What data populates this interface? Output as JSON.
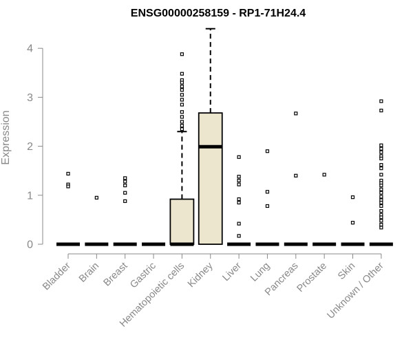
{
  "chart_data": {
    "type": "box",
    "title": "ENSG00000258159 - RP1-71H24.4",
    "xlabel": "",
    "ylabel": "Expression",
    "ylim": [
      0,
      4.4
    ],
    "yticks": [
      0,
      1,
      2,
      3,
      4
    ],
    "categories": [
      "Bladder",
      "Brain",
      "Breast",
      "Gastric",
      "Hematopoietic cells",
      "Kidney",
      "Liver",
      "Lung",
      "Pancreas",
      "Prostate",
      "Skin",
      "Unknown / Other"
    ],
    "box_fill": "#ede6cf",
    "boxes": [
      {
        "category": "Bladder",
        "q1": 0,
        "median": 0,
        "q3": 0,
        "whisker_low": 0,
        "whisker_high": 0,
        "outliers": [
          1.44,
          1.22,
          1.18
        ]
      },
      {
        "category": "Brain",
        "q1": 0,
        "median": 0,
        "q3": 0,
        "whisker_low": 0,
        "whisker_high": 0,
        "outliers": [
          0.95
        ]
      },
      {
        "category": "Breast",
        "q1": 0,
        "median": 0,
        "q3": 0,
        "whisker_low": 0,
        "whisker_high": 0,
        "outliers": [
          1.35,
          1.28,
          1.2,
          1.05,
          0.88
        ]
      },
      {
        "category": "Gastric",
        "q1": 0,
        "median": 0,
        "q3": 0,
        "whisker_low": 0,
        "whisker_high": 0,
        "outliers": []
      },
      {
        "category": "Hematopoietic cells",
        "q1": 0,
        "median": 0,
        "q3": 0.92,
        "whisker_low": 0,
        "whisker_high": 2.3,
        "outliers": [
          3.88,
          3.48,
          3.35,
          3.3,
          3.22,
          3.15,
          3.05,
          2.95,
          2.85,
          2.7,
          2.6,
          2.5,
          2.42,
          2.35
        ]
      },
      {
        "category": "Kidney",
        "q1": 0,
        "median": 1.99,
        "q3": 2.68,
        "whisker_low": 0,
        "whisker_high": 4.4,
        "outliers": []
      },
      {
        "category": "Liver",
        "q1": 0,
        "median": 0,
        "q3": 0,
        "whisker_low": 0,
        "whisker_high": 0,
        "outliers": [
          1.78,
          1.38,
          1.3,
          1.22,
          0.92,
          0.85,
          0.42,
          0.17
        ]
      },
      {
        "category": "Lung",
        "q1": 0,
        "median": 0,
        "q3": 0,
        "whisker_low": 0,
        "whisker_high": 0,
        "outliers": [
          1.9,
          1.07,
          0.78
        ]
      },
      {
        "category": "Pancreas",
        "q1": 0,
        "median": 0,
        "q3": 0,
        "whisker_low": 0,
        "whisker_high": 0,
        "outliers": [
          2.67,
          1.4
        ]
      },
      {
        "category": "Prostate",
        "q1": 0,
        "median": 0,
        "q3": 0,
        "whisker_low": 0,
        "whisker_high": 0,
        "outliers": [
          1.42
        ]
      },
      {
        "category": "Skin",
        "q1": 0,
        "median": 0,
        "q3": 0,
        "whisker_low": 0,
        "whisker_high": 0,
        "outliers": [
          0.96,
          0.44
        ]
      },
      {
        "category": "Unknown / Other",
        "q1": 0,
        "median": 0,
        "q3": 0,
        "whisker_low": 0,
        "whisker_high": 0,
        "outliers": [
          2.92,
          2.73,
          2.02,
          1.95,
          1.88,
          1.8,
          1.75,
          1.62,
          1.55,
          1.42,
          1.3,
          1.25,
          1.2,
          1.12,
          1.05,
          0.97,
          0.9,
          0.85,
          0.78,
          0.68,
          0.6,
          0.55,
          0.48,
          0.4,
          0.34
        ]
      }
    ]
  }
}
